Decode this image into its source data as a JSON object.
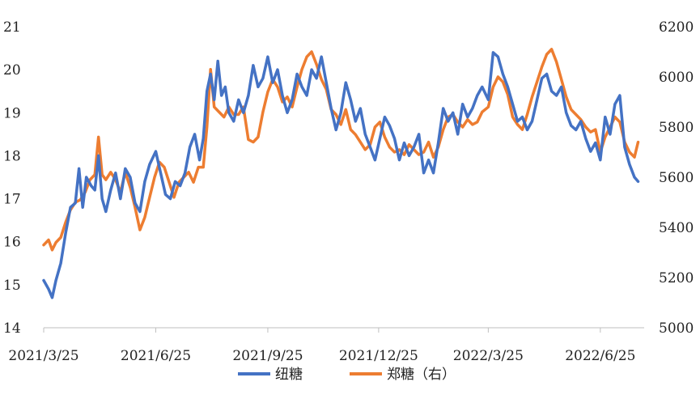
{
  "chart_data": {
    "type": "line",
    "title": "",
    "xlabel": "",
    "ylabel_left": "",
    "ylabel_right": "",
    "x_ticks": [
      "2021/3/25",
      "2021/6/25",
      "2021/9/25",
      "2021/12/25",
      "2022/3/25",
      "2022/6/25"
    ],
    "x_range": [
      "2021/3/25",
      "2022/7/31"
    ],
    "y_left_range": [
      14,
      21
    ],
    "y_left_ticks": [
      14,
      15,
      16,
      17,
      18,
      19,
      20,
      21
    ],
    "y_right_range": [
      5000,
      6200
    ],
    "y_right_ticks": [
      5000,
      5200,
      5400,
      5600,
      5800,
      6000,
      6200
    ],
    "grid": false,
    "legend_position": "bottom",
    "series": [
      {
        "name": "纽糖",
        "axis": "left",
        "color": "#4472C4",
        "points": [
          [
            "2021/3/25",
            15.1
          ],
          [
            "2021/3/29",
            14.9
          ],
          [
            "2021/4/1",
            14.7
          ],
          [
            "2021/4/4",
            15.1
          ],
          [
            "2021/4/8",
            15.5
          ],
          [
            "2021/4/12",
            16.2
          ],
          [
            "2021/4/16",
            16.8
          ],
          [
            "2021/4/20",
            16.9
          ],
          [
            "2021/4/23",
            17.7
          ],
          [
            "2021/4/26",
            16.8
          ],
          [
            "2021/4/29",
            17.5
          ],
          [
            "2021/5/3",
            17.3
          ],
          [
            "2021/5/6",
            17.2
          ],
          [
            "2021/5/9",
            18.0
          ],
          [
            "2021/5/12",
            17.0
          ],
          [
            "2021/5/15",
            16.7
          ],
          [
            "2021/5/19",
            17.2
          ],
          [
            "2021/5/23",
            17.6
          ],
          [
            "2021/5/27",
            17.0
          ],
          [
            "2021/5/31",
            17.7
          ],
          [
            "2021/6/4",
            17.5
          ],
          [
            "2021/6/8",
            16.9
          ],
          [
            "2021/6/12",
            16.7
          ],
          [
            "2021/6/16",
            17.4
          ],
          [
            "2021/6/20",
            17.8
          ],
          [
            "2021/6/25",
            18.1
          ],
          [
            "2021/6/29",
            17.6
          ],
          [
            "2021/7/3",
            17.1
          ],
          [
            "2021/7/7",
            17.0
          ],
          [
            "2021/7/11",
            17.4
          ],
          [
            "2021/7/15",
            17.3
          ],
          [
            "2021/7/19",
            17.6
          ],
          [
            "2021/7/23",
            18.2
          ],
          [
            "2021/7/27",
            18.5
          ],
          [
            "2021/7/31",
            17.9
          ],
          [
            "2021/8/3",
            18.4
          ],
          [
            "2021/8/6",
            19.5
          ],
          [
            "2021/8/9",
            19.9
          ],
          [
            "2021/8/12",
            19.3
          ],
          [
            "2021/8/15",
            20.2
          ],
          [
            "2021/8/18",
            19.4
          ],
          [
            "2021/8/21",
            19.6
          ],
          [
            "2021/8/24",
            19.0
          ],
          [
            "2021/8/28",
            18.8
          ],
          [
            "2021/9/1",
            19.3
          ],
          [
            "2021/9/5",
            19.0
          ],
          [
            "2021/9/9",
            19.4
          ],
          [
            "2021/9/13",
            20.1
          ],
          [
            "2021/9/17",
            19.6
          ],
          [
            "2021/9/21",
            19.8
          ],
          [
            "2021/9/25",
            20.3
          ],
          [
            "2021/9/29",
            19.7
          ],
          [
            "2021/10/3",
            20.0
          ],
          [
            "2021/10/7",
            19.4
          ],
          [
            "2021/10/11",
            19.0
          ],
          [
            "2021/10/15",
            19.3
          ],
          [
            "2021/10/19",
            19.9
          ],
          [
            "2021/10/23",
            19.6
          ],
          [
            "2021/10/27",
            19.4
          ],
          [
            "2021/10/31",
            20.0
          ],
          [
            "2021/11/4",
            19.8
          ],
          [
            "2021/11/8",
            20.3
          ],
          [
            "2021/11/12",
            19.7
          ],
          [
            "2021/11/16",
            19.1
          ],
          [
            "2021/11/20",
            18.6
          ],
          [
            "2021/11/24",
            19.0
          ],
          [
            "2021/11/28",
            19.7
          ],
          [
            "2021/12/2",
            19.3
          ],
          [
            "2021/12/6",
            18.8
          ],
          [
            "2021/12/10",
            19.1
          ],
          [
            "2021/12/14",
            18.5
          ],
          [
            "2021/12/18",
            18.2
          ],
          [
            "2021/12/22",
            17.9
          ],
          [
            "2021/12/26",
            18.4
          ],
          [
            "2021/12/30",
            18.9
          ],
          [
            "2022/1/3",
            18.7
          ],
          [
            "2022/1/7",
            18.4
          ],
          [
            "2022/1/11",
            17.9
          ],
          [
            "2022/1/15",
            18.3
          ],
          [
            "2022/1/19",
            18.0
          ],
          [
            "2022/1/23",
            18.2
          ],
          [
            "2022/1/27",
            18.5
          ],
          [
            "2022/1/31",
            17.6
          ],
          [
            "2022/2/4",
            17.9
          ],
          [
            "2022/2/8",
            17.6
          ],
          [
            "2022/2/12",
            18.3
          ],
          [
            "2022/2/16",
            19.1
          ],
          [
            "2022/2/20",
            18.8
          ],
          [
            "2022/2/24",
            19.0
          ],
          [
            "2022/2/28",
            18.5
          ],
          [
            "2022/3/4",
            19.2
          ],
          [
            "2022/3/8",
            18.9
          ],
          [
            "2022/3/12",
            19.1
          ],
          [
            "2022/3/16",
            19.4
          ],
          [
            "2022/3/20",
            19.6
          ],
          [
            "2022/3/25",
            19.3
          ],
          [
            "2022/3/29",
            20.4
          ],
          [
            "2022/4/2",
            20.3
          ],
          [
            "2022/4/6",
            19.9
          ],
          [
            "2022/4/10",
            19.6
          ],
          [
            "2022/4/14",
            19.2
          ],
          [
            "2022/4/18",
            18.8
          ],
          [
            "2022/4/22",
            18.9
          ],
          [
            "2022/4/26",
            18.6
          ],
          [
            "2022/4/30",
            18.8
          ],
          [
            "2022/5/4",
            19.3
          ],
          [
            "2022/5/8",
            19.8
          ],
          [
            "2022/5/12",
            19.9
          ],
          [
            "2022/5/16",
            19.5
          ],
          [
            "2022/5/20",
            19.4
          ],
          [
            "2022/5/24",
            19.6
          ],
          [
            "2022/5/28",
            19.0
          ],
          [
            "2022/6/1",
            18.7
          ],
          [
            "2022/6/5",
            18.6
          ],
          [
            "2022/6/9",
            18.8
          ],
          [
            "2022/6/13",
            18.4
          ],
          [
            "2022/6/17",
            18.1
          ],
          [
            "2022/6/21",
            18.3
          ],
          [
            "2022/6/25",
            17.9
          ],
          [
            "2022/6/29",
            18.9
          ],
          [
            "2022/7/3",
            18.5
          ],
          [
            "2022/7/7",
            19.2
          ],
          [
            "2022/7/11",
            19.4
          ],
          [
            "2022/7/15",
            18.2
          ],
          [
            "2022/7/19",
            17.8
          ],
          [
            "2022/7/23",
            17.5
          ],
          [
            "2022/7/26",
            17.4
          ]
        ]
      },
      {
        "name": "郑糖（右）",
        "axis": "right",
        "color": "#ED7D31",
        "points": [
          [
            "2021/3/25",
            5330
          ],
          [
            "2021/3/29",
            5350
          ],
          [
            "2021/4/1",
            5310
          ],
          [
            "2021/4/4",
            5340
          ],
          [
            "2021/4/8",
            5360
          ],
          [
            "2021/4/12",
            5420
          ],
          [
            "2021/4/16",
            5470
          ],
          [
            "2021/4/20",
            5500
          ],
          [
            "2021/4/24",
            5510
          ],
          [
            "2021/4/28",
            5540
          ],
          [
            "2021/5/2",
            5590
          ],
          [
            "2021/5/6",
            5610
          ],
          [
            "2021/5/9",
            5760
          ],
          [
            "2021/5/12",
            5610
          ],
          [
            "2021/5/15",
            5590
          ],
          [
            "2021/5/19",
            5620
          ],
          [
            "2021/5/23",
            5590
          ],
          [
            "2021/5/27",
            5540
          ],
          [
            "2021/5/31",
            5620
          ],
          [
            "2021/6/4",
            5560
          ],
          [
            "2021/6/8",
            5480
          ],
          [
            "2021/6/12",
            5390
          ],
          [
            "2021/6/16",
            5440
          ],
          [
            "2021/6/20",
            5520
          ],
          [
            "2021/6/24",
            5600
          ],
          [
            "2021/6/28",
            5660
          ],
          [
            "2021/7/2",
            5640
          ],
          [
            "2021/7/6",
            5580
          ],
          [
            "2021/7/10",
            5520
          ],
          [
            "2021/7/14",
            5580
          ],
          [
            "2021/7/18",
            5600
          ],
          [
            "2021/7/22",
            5620
          ],
          [
            "2021/7/26",
            5580
          ],
          [
            "2021/7/30",
            5640
          ],
          [
            "2021/8/3",
            5640
          ],
          [
            "2021/8/6",
            5800
          ],
          [
            "2021/8/9",
            6030
          ],
          [
            "2021/8/12",
            5880
          ],
          [
            "2021/8/16",
            5860
          ],
          [
            "2021/8/20",
            5840
          ],
          [
            "2021/8/24",
            5880
          ],
          [
            "2021/8/28",
            5850
          ],
          [
            "2021/9/1",
            5850
          ],
          [
            "2021/9/5",
            5880
          ],
          [
            "2021/9/9",
            5750
          ],
          [
            "2021/9/13",
            5740
          ],
          [
            "2021/9/17",
            5760
          ],
          [
            "2021/9/21",
            5860
          ],
          [
            "2021/9/25",
            5940
          ],
          [
            "2021/9/29",
            5990
          ],
          [
            "2021/10/3",
            5960
          ],
          [
            "2021/10/7",
            5900
          ],
          [
            "2021/10/11",
            5920
          ],
          [
            "2021/10/15",
            5880
          ],
          [
            "2021/10/19",
            5960
          ],
          [
            "2021/10/23",
            6030
          ],
          [
            "2021/10/27",
            6080
          ],
          [
            "2021/10/31",
            6100
          ],
          [
            "2021/11/4",
            6050
          ],
          [
            "2021/11/8",
            5990
          ],
          [
            "2021/11/12",
            5950
          ],
          [
            "2021/11/16",
            5870
          ],
          [
            "2021/11/20",
            5850
          ],
          [
            "2021/11/24",
            5810
          ],
          [
            "2021/11/28",
            5870
          ],
          [
            "2021/12/2",
            5790
          ],
          [
            "2021/12/6",
            5770
          ],
          [
            "2021/12/10",
            5740
          ],
          [
            "2021/12/14",
            5710
          ],
          [
            "2021/12/18",
            5730
          ],
          [
            "2021/12/22",
            5800
          ],
          [
            "2021/12/26",
            5820
          ],
          [
            "2021/12/30",
            5760
          ],
          [
            "2022/1/3",
            5720
          ],
          [
            "2022/1/7",
            5700
          ],
          [
            "2022/1/11",
            5710
          ],
          [
            "2022/1/15",
            5690
          ],
          [
            "2022/1/19",
            5730
          ],
          [
            "2022/1/23",
            5710
          ],
          [
            "2022/1/27",
            5690
          ],
          [
            "2022/1/31",
            5700
          ],
          [
            "2022/2/4",
            5740
          ],
          [
            "2022/2/8",
            5680
          ],
          [
            "2022/2/12",
            5720
          ],
          [
            "2022/2/16",
            5790
          ],
          [
            "2022/2/20",
            5840
          ],
          [
            "2022/2/24",
            5850
          ],
          [
            "2022/2/28",
            5820
          ],
          [
            "2022/3/4",
            5800
          ],
          [
            "2022/3/8",
            5830
          ],
          [
            "2022/3/12",
            5810
          ],
          [
            "2022/3/16",
            5820
          ],
          [
            "2022/3/20",
            5860
          ],
          [
            "2022/3/25",
            5880
          ],
          [
            "2022/3/29",
            5960
          ],
          [
            "2022/4/2",
            6000
          ],
          [
            "2022/4/6",
            5980
          ],
          [
            "2022/4/10",
            5930
          ],
          [
            "2022/4/14",
            5840
          ],
          [
            "2022/4/18",
            5810
          ],
          [
            "2022/4/22",
            5790
          ],
          [
            "2022/4/26",
            5850
          ],
          [
            "2022/4/30",
            5920
          ],
          [
            "2022/5/4",
            5980
          ],
          [
            "2022/5/8",
            6040
          ],
          [
            "2022/5/12",
            6090
          ],
          [
            "2022/5/16",
            6110
          ],
          [
            "2022/5/20",
            6060
          ],
          [
            "2022/5/24",
            5990
          ],
          [
            "2022/5/28",
            5920
          ],
          [
            "2022/6/1",
            5870
          ],
          [
            "2022/6/5",
            5850
          ],
          [
            "2022/6/9",
            5830
          ],
          [
            "2022/6/13",
            5800
          ],
          [
            "2022/6/17",
            5780
          ],
          [
            "2022/6/21",
            5790
          ],
          [
            "2022/6/25",
            5700
          ],
          [
            "2022/6/29",
            5760
          ],
          [
            "2022/7/3",
            5800
          ],
          [
            "2022/7/7",
            5840
          ],
          [
            "2022/7/11",
            5820
          ],
          [
            "2022/7/15",
            5740
          ],
          [
            "2022/7/19",
            5700
          ],
          [
            "2022/7/23",
            5680
          ],
          [
            "2022/7/26",
            5740
          ]
        ]
      }
    ]
  }
}
